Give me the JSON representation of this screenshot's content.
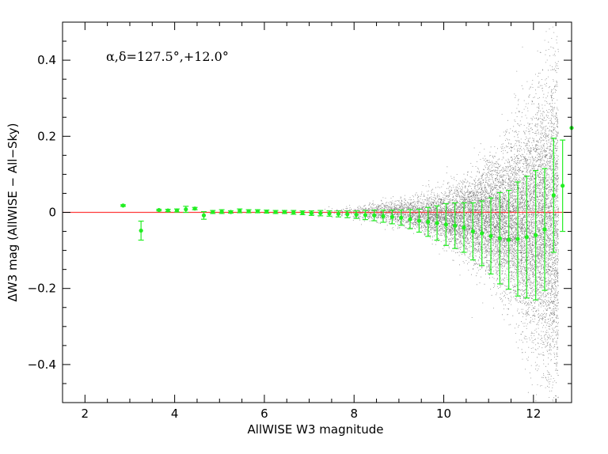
{
  "chart_data": {
    "type": "scatter",
    "title": "",
    "xlabel": "AllWISE W3 magnitude",
    "ylabel": "ΔW3 mag (AllWISE − All−Sky)",
    "annotation": "α,δ=127.5°,+12.0°",
    "xlim": [
      1.5,
      12.85
    ],
    "ylim": [
      -0.5,
      0.5
    ],
    "x_ticks": [
      2,
      4,
      6,
      8,
      10,
      12
    ],
    "y_ticks": [
      -0.4,
      -0.2,
      0,
      0.2,
      0.4
    ],
    "x_tick_labels": [
      "2",
      "4",
      "6",
      "8",
      "10",
      "12"
    ],
    "y_tick_labels": [
      "−0.4",
      "−0.2",
      "0",
      "0.2",
      "0.4"
    ],
    "reference_line": {
      "y": 0,
      "color": "#ff3b3b"
    },
    "colors": {
      "binned_points": "#22ee22",
      "scatter": "#000000",
      "frame": "#000000"
    },
    "scatter_background": "dense cloud of individual sources, spread increasing strongly toward faint magnitudes (W3 > 10)",
    "series": [
      {
        "x": [
          2.85,
          3.25,
          3.65,
          3.85,
          4.05,
          4.25,
          4.45,
          4.65,
          4.85,
          5.05,
          5.25,
          5.45,
          5.65,
          5.85,
          6.05,
          6.25,
          6.45,
          6.65,
          6.85,
          7.05,
          7.25,
          7.45,
          7.65,
          7.85,
          8.05,
          8.25,
          8.45,
          8.65,
          8.85,
          9.05,
          9.25,
          9.45,
          9.65,
          9.85,
          10.05,
          10.25,
          10.45,
          10.65,
          10.85,
          11.05,
          11.25,
          11.45,
          11.65,
          11.85,
          12.05,
          12.25,
          12.45,
          12.65,
          12.85
        ],
        "y": [
          0.018,
          -0.048,
          0.006,
          0.005,
          0.005,
          0.008,
          0.01,
          -0.008,
          0.001,
          0.002,
          0.001,
          0.004,
          0.003,
          0.003,
          0.002,
          0.001,
          0.001,
          0.0,
          -0.001,
          -0.002,
          -0.002,
          -0.003,
          -0.004,
          -0.005,
          -0.006,
          -0.007,
          -0.008,
          -0.01,
          -0.012,
          -0.014,
          -0.018,
          -0.022,
          -0.025,
          -0.028,
          -0.032,
          -0.035,
          -0.04,
          -0.05,
          -0.055,
          -0.062,
          -0.068,
          -0.072,
          -0.07,
          -0.065,
          -0.06,
          -0.045,
          0.045,
          0.07,
          0.222
        ],
        "err": [
          0.002,
          0.025,
          0.002,
          0.003,
          0.004,
          0.008,
          0.003,
          0.01,
          0.004,
          0.005,
          0.003,
          0.005,
          0.004,
          0.004,
          0.004,
          0.004,
          0.004,
          0.005,
          0.005,
          0.006,
          0.007,
          0.007,
          0.008,
          0.009,
          0.01,
          0.012,
          0.014,
          0.016,
          0.018,
          0.02,
          0.025,
          0.03,
          0.038,
          0.045,
          0.055,
          0.06,
          0.065,
          0.075,
          0.085,
          0.1,
          0.12,
          0.13,
          0.15,
          0.16,
          0.17,
          0.16,
          0.15,
          0.12,
          0.0
        ]
      }
    ]
  }
}
